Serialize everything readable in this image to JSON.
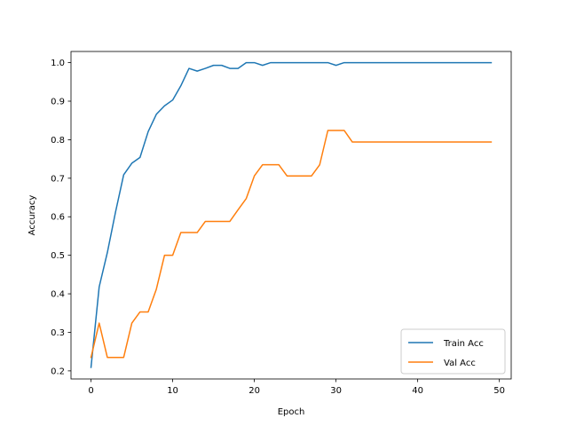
{
  "chart_data": {
    "type": "line",
    "xlabel": "Epoch",
    "ylabel": "Accuracy",
    "xlim": [
      -2.45,
      51.45
    ],
    "ylim": [
      0.179,
      1.029
    ],
    "xticks": [
      0,
      10,
      20,
      30,
      40,
      50
    ],
    "yticks": [
      0.2,
      0.3,
      0.4,
      0.5,
      0.6,
      0.7,
      0.8,
      0.9,
      1.0
    ],
    "xtick_labels": [
      "0",
      "10",
      "20",
      "30",
      "40",
      "50"
    ],
    "ytick_labels": [
      "0.2",
      "0.3",
      "0.4",
      "0.5",
      "0.6",
      "0.7",
      "0.8",
      "0.9",
      "1.0"
    ],
    "grid": false,
    "legend_position": "lower-right",
    "x": [
      0,
      1,
      2,
      3,
      4,
      5,
      6,
      7,
      8,
      9,
      10,
      11,
      12,
      13,
      14,
      15,
      16,
      17,
      18,
      19,
      20,
      21,
      22,
      23,
      24,
      25,
      26,
      27,
      28,
      29,
      30,
      31,
      32,
      33,
      34,
      35,
      36,
      37,
      38,
      39,
      40,
      41,
      42,
      43,
      44,
      45,
      46,
      47,
      48,
      49
    ],
    "series": [
      {
        "name": "Train Acc",
        "color": "#1f77b4",
        "values": [
          0.209,
          0.418,
          0.507,
          0.612,
          0.709,
          0.739,
          0.754,
          0.821,
          0.866,
          0.888,
          0.903,
          0.94,
          0.985,
          0.978,
          0.985,
          0.993,
          0.993,
          0.985,
          0.985,
          1.0,
          1.0,
          0.993,
          1.0,
          1.0,
          1.0,
          1.0,
          1.0,
          1.0,
          1.0,
          1.0,
          0.993,
          1.0,
          1.0,
          1.0,
          1.0,
          1.0,
          1.0,
          1.0,
          1.0,
          1.0,
          1.0,
          1.0,
          1.0,
          1.0,
          1.0,
          1.0,
          1.0,
          1.0,
          1.0,
          1.0
        ]
      },
      {
        "name": "Val Acc",
        "color": "#ff7f0e",
        "values": [
          0.235,
          0.324,
          0.235,
          0.235,
          0.235,
          0.324,
          0.353,
          0.353,
          0.412,
          0.5,
          0.5,
          0.559,
          0.559,
          0.559,
          0.588,
          0.588,
          0.588,
          0.588,
          0.618,
          0.647,
          0.706,
          0.735,
          0.735,
          0.735,
          0.706,
          0.706,
          0.706,
          0.706,
          0.735,
          0.824,
          0.824,
          0.824,
          0.794,
          0.794,
          0.794,
          0.794,
          0.794,
          0.794,
          0.794,
          0.794,
          0.794,
          0.794,
          0.794,
          0.794,
          0.794,
          0.794,
          0.794,
          0.794,
          0.794,
          0.794
        ]
      }
    ]
  }
}
